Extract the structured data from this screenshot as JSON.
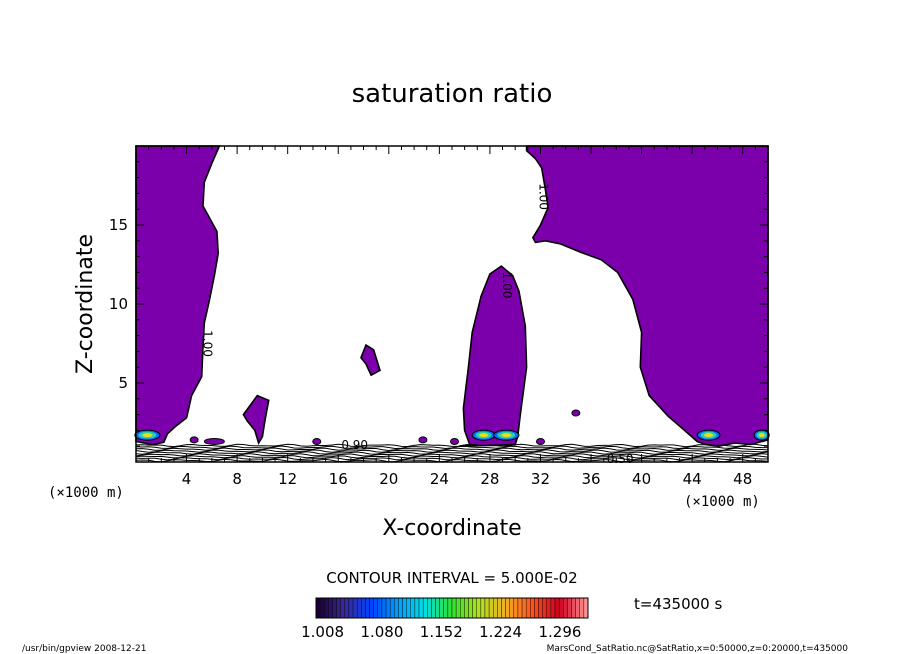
{
  "chart_data": {
    "type": "contour",
    "title": "saturation ratio",
    "xlabel": "X-coordinate",
    "ylabel": "Z-coordinate",
    "x_unit": "(×1000 m)",
    "x_unit_right": "(×1000 m)",
    "xlim": [
      0,
      50
    ],
    "ylim": [
      0,
      20
    ],
    "x_ticks": [
      4,
      8,
      12,
      16,
      20,
      24,
      28,
      32,
      36,
      40,
      44,
      48
    ],
    "x_tick_labels": [
      "4",
      "8",
      "12",
      "16",
      "20",
      "24",
      "28",
      "32",
      "36",
      "40",
      "44",
      "48"
    ],
    "y_ticks": [
      5,
      10,
      15
    ],
    "y_tick_labels": [
      "5",
      "10",
      "15"
    ],
    "contour_interval": "CONTOUR INTERVAL = 5.000E-02",
    "time_label": "t=435000 s",
    "colorbar": {
      "min": 1.0,
      "max": 1.33,
      "tick_labels": [
        "1.008",
        "1.080",
        "1.152",
        "1.224",
        "1.296"
      ],
      "tick_values": [
        1.008,
        1.08,
        1.152,
        1.224,
        1.296
      ],
      "colors": [
        "#1a0033",
        "#3a2a9a",
        "#0044ff",
        "#00a0ff",
        "#00e0e0",
        "#30e030",
        "#b0e020",
        "#f0b020",
        "#ff5020",
        "#d00020",
        "#ff9090"
      ]
    },
    "contour_labels": [
      {
        "text": "1.00",
        "x": 5.6,
        "z": 7.5
      },
      {
        "text": "1.00",
        "x": 32.2,
        "z": 16.8
      },
      {
        "text": "1.00",
        "x": 29.3,
        "z": 11.2
      },
      {
        "text": "0.90",
        "x": 17.3,
        "z": 1.05
      },
      {
        "text": "0.50",
        "x": 38.3,
        "z": 0.15
      }
    ],
    "regions": [
      {
        "name": "left-supersaturated-column",
        "x_range": [
          0,
          6.6
        ],
        "z_range": [
          1.1,
          20
        ]
      },
      {
        "name": "central-plume",
        "x_range": [
          25.6,
          30.9
        ],
        "z_range": [
          1.0,
          12.4
        ]
      },
      {
        "name": "right-supersaturated-region",
        "x_range": [
          30.9,
          50
        ],
        "z_range": [
          1.0,
          20
        ]
      },
      {
        "name": "small-cell-x18",
        "x_range": [
          17.8,
          19.3
        ],
        "z_range": [
          5.5,
          7.4
        ]
      },
      {
        "name": "small-cell-x10",
        "x_range": [
          8.5,
          10.5
        ],
        "z_range": [
          1.2,
          4.2
        ]
      }
    ],
    "fill_color": "#7b00ab"
  },
  "footer": {
    "left": "/usr/bin/gpview   2008-12-21",
    "right": "MarsCond_SatRatio.nc@SatRatio,x=0:50000,z=0:20000,t=435000"
  }
}
